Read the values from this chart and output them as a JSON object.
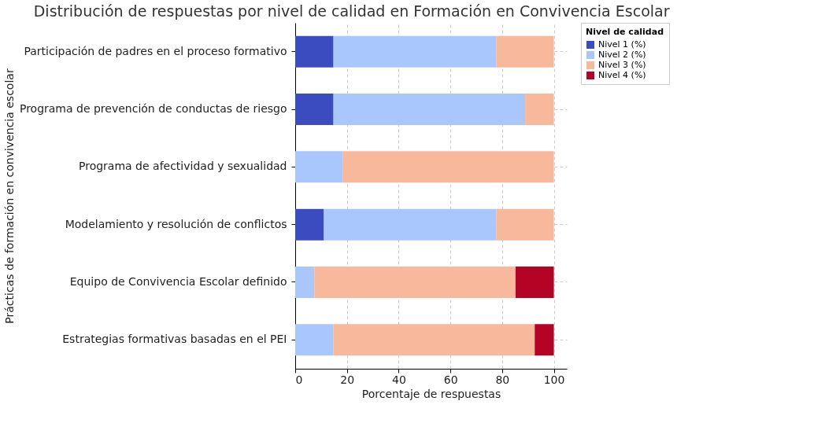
{
  "chart_data": {
    "type": "bar",
    "orientation": "horizontal",
    "stacked": true,
    "title": "Distribución de respuestas por nivel de calidad en Formación en Convivencia Escolar",
    "xlabel": "Porcentaje de respuestas",
    "ylabel": "Prácticas de formación en convivencia escolar",
    "legend_title": "Nivel de calidad",
    "legend": "top right",
    "grid": true,
    "categories": [
      "Participación de padres en el proceso formativo",
      "Programa de prevención de conductas de riesgo",
      "Programa de afectividad y sexualidad",
      "Modelamiento y resolución de conflictos",
      "Equipo de Convivencia Escolar definido",
      "Estrategias formativas basadas en el PEI"
    ],
    "series": [
      {
        "name": "Nivel 1 (%)",
        "color": "#3b4cc0",
        "values": [
          14.8,
          14.8,
          0,
          11.1,
          0,
          0
        ]
      },
      {
        "name": "Nivel 2 (%)",
        "color": "#aac7fd",
        "values": [
          63.0,
          74.1,
          18.5,
          66.7,
          7.4,
          14.8
        ]
      },
      {
        "name": "Nivel 3 (%)",
        "color": "#f7b89c",
        "values": [
          22.2,
          11.1,
          81.5,
          22.2,
          77.8,
          77.8
        ]
      },
      {
        "name": "Nivel 4 (%)",
        "color": "#b40426",
        "values": [
          0,
          0,
          0,
          0,
          14.8,
          7.4
        ]
      }
    ],
    "xlim": [
      0,
      105
    ],
    "xticks": [
      0,
      20,
      40,
      60,
      80,
      100
    ]
  }
}
